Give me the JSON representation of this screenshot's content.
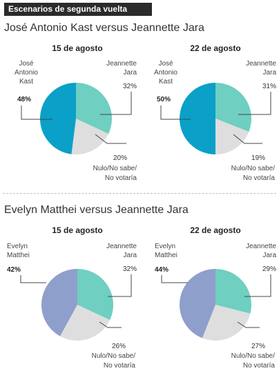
{
  "header": {
    "badge": "Escenarios de segunda vuelta"
  },
  "sections": [
    {
      "title": "José Antonio Kast versus Jeannette Jara"
    },
    {
      "title": "Evelyn Matthei versus Jeannette Jara"
    }
  ],
  "colors": {
    "kast": "#0aa0c8",
    "jara": "#6fcfc0",
    "matthei": "#8f9fcb",
    "nulo": "#dedede"
  },
  "chart_data": [
    {
      "type": "pie",
      "title": "15 de agosto",
      "labels": [
        "José Antonio Kast",
        "Jeannette Jara",
        "Nulo/No sabe/No votaría"
      ],
      "values": [
        48,
        32,
        20
      ],
      "value_labels": [
        "48%",
        "32%",
        "20%"
      ]
    },
    {
      "type": "pie",
      "title": "22 de agosto",
      "labels": [
        "José Antonio Kast",
        "Jeannette Jara",
        "Nulo/No sabe/No votaría"
      ],
      "values": [
        50,
        31,
        19
      ],
      "value_labels": [
        "50%",
        "31%",
        "19%"
      ]
    },
    {
      "type": "pie",
      "title": "15 de agosto",
      "labels": [
        "Evelyn Matthei",
        "Jeannette Jara",
        "Nulo/No sabe/No votaría"
      ],
      "values": [
        42,
        32,
        26
      ],
      "value_labels": [
        "42%",
        "32%",
        "26%"
      ]
    },
    {
      "type": "pie",
      "title": "22 de agosto",
      "labels": [
        "Evelyn Matthei",
        "Jeannette Jara",
        "Nulo/No sabe/No votaría"
      ],
      "values": [
        44,
        29,
        27
      ],
      "value_labels": [
        "44%",
        "29%",
        "27%"
      ]
    }
  ]
}
